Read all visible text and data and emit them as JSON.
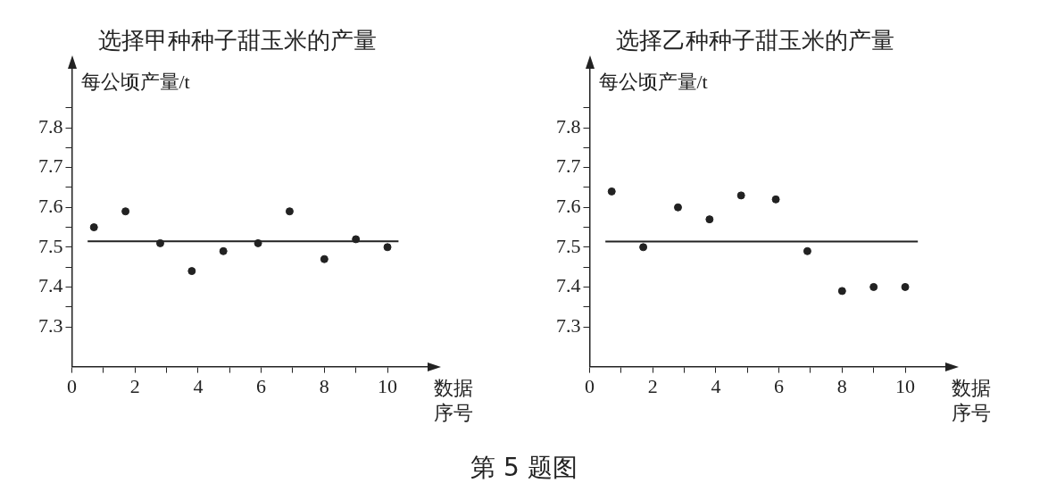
{
  "chart_data": [
    {
      "type": "scatter",
      "title": "选择甲种种子甜玉米的产量",
      "ylabel": "每公顷产量/t",
      "xlabel": "数据序号",
      "marker": "circle",
      "x": [
        0.7,
        1.7,
        2.8,
        3.8,
        4.8,
        5.9,
        6.9,
        8.0,
        9.0,
        10.0
      ],
      "series": [
        {
          "color": "#222222",
          "values": [
            7.55,
            7.59,
            7.51,
            7.44,
            7.49,
            7.51,
            7.59,
            7.47,
            7.52,
            7.5
          ]
        },
        {
          "type": "line",
          "marker": "none",
          "color": "#222222",
          "x": [
            0.5,
            10.35
          ],
          "values": [
            7.515,
            7.515
          ]
        }
      ],
      "xlim": [
        0,
        11.3
      ],
      "xticks": [
        0,
        {
          "value": 1,
          "label": null
        },
        2,
        {
          "value": 3,
          "label": null
        },
        4,
        {
          "value": 5,
          "label": null
        },
        6,
        {
          "value": 7,
          "label": null
        },
        8,
        {
          "value": 9,
          "label": null
        },
        10
      ],
      "ylim": [
        7.2,
        7.95
      ],
      "yticks": [
        7.3,
        {
          "value": 7.35,
          "label": null
        },
        7.4,
        {
          "value": 7.45,
          "label": null
        },
        7.5,
        {
          "value": 7.55,
          "label": null
        },
        7.6,
        {
          "value": 7.65,
          "label": null
        },
        7.7,
        {
          "value": 7.75,
          "label": null
        },
        7.8,
        {
          "value": 7.85,
          "label": null
        }
      ]
    },
    {
      "type": "scatter",
      "title": "选择乙种种子甜玉米的产量",
      "ylabel": "每公顷产量/t",
      "xlabel": "数据序号",
      "marker": "circle",
      "annotations": [
        "第 5 题图"
      ],
      "x": [
        0.7,
        1.7,
        2.8,
        3.8,
        4.8,
        5.9,
        6.9,
        8.0,
        9.0,
        10.0
      ],
      "series": [
        {
          "color": "#222222",
          "values": [
            7.64,
            7.5,
            7.6,
            7.57,
            7.63,
            7.62,
            7.49,
            7.39,
            7.4,
            7.4
          ]
        },
        {
          "type": "line",
          "marker": "none",
          "color": "#222222",
          "x": [
            0.5,
            10.4
          ],
          "values": [
            7.514,
            7.514
          ]
        }
      ],
      "xlim": [
        0,
        11.3
      ],
      "xticks": [
        0,
        {
          "value": 1,
          "label": null
        },
        2,
        {
          "value": 3,
          "label": null
        },
        4,
        {
          "value": 5,
          "label": null
        },
        6,
        {
          "value": 7,
          "label": null
        },
        8,
        {
          "value": 9,
          "label": null
        },
        10
      ],
      "ylim": [
        7.2,
        7.95
      ],
      "yticks": [
        7.3,
        {
          "value": 7.35,
          "label": null
        },
        7.4,
        {
          "value": 7.45,
          "label": null
        },
        7.5,
        {
          "value": 7.55,
          "label": null
        },
        7.6,
        {
          "value": 7.65,
          "label": null
        },
        7.7,
        {
          "value": 7.75,
          "label": null
        },
        7.8,
        {
          "value": 7.85,
          "label": null
        }
      ]
    }
  ]
}
